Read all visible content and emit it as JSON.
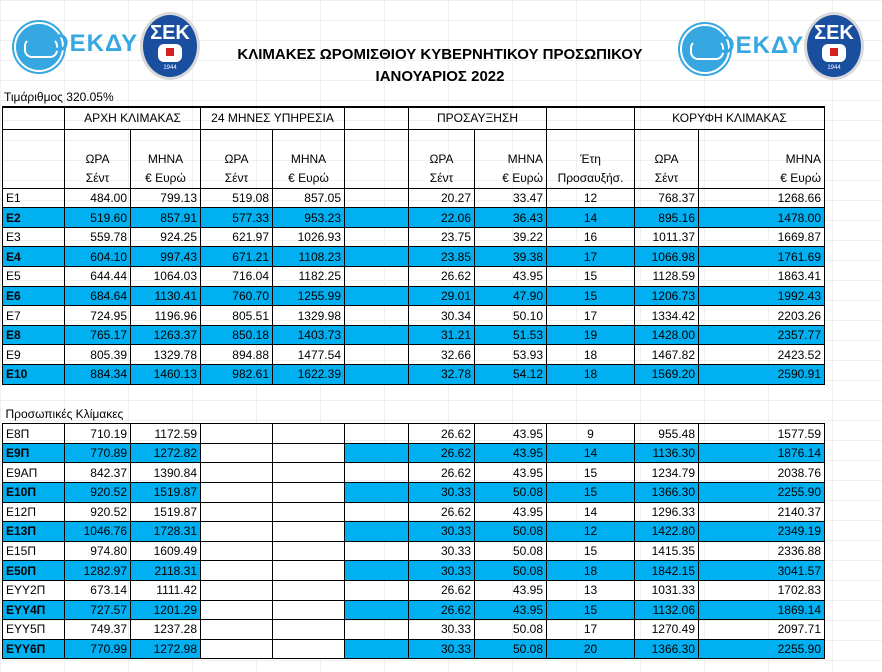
{
  "header": {
    "left_logo_text": "ΟΕΚΔΥ",
    "sek_logo_text": "ΣΕΚ",
    "sek_year": "1944",
    "right_logo_text": "ΟΕΚΔΥ",
    "title_line1": "ΚΛΙΜΑΚΕΣ ΩΡΟΜΙΣΘΙΟΥ ΚΥΒΕΡΝΗΤΙΚΟΥ ΠΡΟΣΩΠΙΚΟΥ",
    "title_line2": "ΙΑΝΟΥΑΡΙΟΣ 2022"
  },
  "rate_label": "Τιμάριθμος 320.05%",
  "colors": {
    "row_highlight": "#00b0f0",
    "logo_blue": "#36a7e0",
    "sek_blue": "#1a4fa0"
  },
  "groups": {
    "start": "ΑΡΧΗ ΚΛΙΜΑΚΑΣ",
    "months24": "24 ΜΗΝΕΣ ΥΠΗΡΕΣΙΑ",
    "increase": "ΠΡΟΣΑΥΞΗΣΗ",
    "top": "ΚΟΡΥΦΗ ΚΛΙΜΑΚΑΣ"
  },
  "subheaders": {
    "hour": "ΩΡΑ",
    "month": "ΜΗΝΑ",
    "years": "Έτη",
    "cents": "Σέντ",
    "euro": "€ Ευρώ",
    "increases": "Προσαυξήσ."
  },
  "section_label": "Προσωπικές Κλίμακες",
  "rows": [
    {
      "code": "Ε1",
      "sh": "484.00",
      "sm": "799.13",
      "mh": "519.08",
      "mm": "857.05",
      "ih": "20.27",
      "im": "33.47",
      "y": "12",
      "th": "768.37",
      "tm": "1268.66",
      "blue": false
    },
    {
      "code": "Ε2",
      "sh": "519.60",
      "sm": "857.91",
      "mh": "577.33",
      "mm": "953.23",
      "ih": "22.06",
      "im": "36.43",
      "y": "14",
      "th": "895.16",
      "tm": "1478.00",
      "blue": true
    },
    {
      "code": "Ε3",
      "sh": "559.78",
      "sm": "924.25",
      "mh": "621.97",
      "mm": "1026.93",
      "ih": "23.75",
      "im": "39.22",
      "y": "16",
      "th": "1011.37",
      "tm": "1669.87",
      "blue": false
    },
    {
      "code": "Ε4",
      "sh": "604.10",
      "sm": "997.43",
      "mh": "671.21",
      "mm": "1108.23",
      "ih": "23.85",
      "im": "39.38",
      "y": "17",
      "th": "1066.98",
      "tm": "1761.69",
      "blue": true
    },
    {
      "code": "Ε5",
      "sh": "644.44",
      "sm": "1064.03",
      "mh": "716.04",
      "mm": "1182.25",
      "ih": "26.62",
      "im": "43.95",
      "y": "15",
      "th": "1128.59",
      "tm": "1863.41",
      "blue": false
    },
    {
      "code": "Ε6",
      "sh": "684.64",
      "sm": "1130.41",
      "mh": "760.70",
      "mm": "1255.99",
      "ih": "29.01",
      "im": "47.90",
      "y": "15",
      "th": "1206.73",
      "tm": "1992.43",
      "blue": true
    },
    {
      "code": "Ε7",
      "sh": "724.95",
      "sm": "1196.96",
      "mh": "805.51",
      "mm": "1329.98",
      "ih": "30.34",
      "im": "50.10",
      "y": "17",
      "th": "1334.42",
      "tm": "2203.26",
      "blue": false
    },
    {
      "code": "Ε8",
      "sh": "765.17",
      "sm": "1263.37",
      "mh": "850.18",
      "mm": "1403.73",
      "ih": "31.21",
      "im": "51.53",
      "y": "19",
      "th": "1428.00",
      "tm": "2357.77",
      "blue": true
    },
    {
      "code": "Ε9",
      "sh": "805.39",
      "sm": "1329.78",
      "mh": "894.88",
      "mm": "1477.54",
      "ih": "32.66",
      "im": "53.93",
      "y": "18",
      "th": "1467.82",
      "tm": "2423.52",
      "blue": false
    },
    {
      "code": "Ε10",
      "sh": "884.34",
      "sm": "1460.13",
      "mh": "982.61",
      "mm": "1622.39",
      "ih": "32.78",
      "im": "54.12",
      "y": "18",
      "th": "1569.20",
      "tm": "2590.91",
      "blue": true
    }
  ],
  "personal_rows": [
    {
      "code": "Ε8Π",
      "sh": "710.19",
      "sm": "1172.59",
      "ih": "26.62",
      "im": "43.95",
      "y": "9",
      "th": "955.48",
      "tm": "1577.59",
      "blue": false
    },
    {
      "code": "Ε9Π",
      "sh": "770.89",
      "sm": "1272.82",
      "ih": "26.62",
      "im": "43.95",
      "y": "14",
      "th": "1136.30",
      "tm": "1876.14",
      "blue": true
    },
    {
      "code": "Ε9ΑΠ",
      "sh": "842.37",
      "sm": "1390.84",
      "ih": "26.62",
      "im": "43.95",
      "y": "15",
      "th": "1234.79",
      "tm": "2038.76",
      "blue": false
    },
    {
      "code": "Ε10Π",
      "sh": "920.52",
      "sm": "1519.87",
      "ih": "30.33",
      "im": "50.08",
      "y": "15",
      "th": "1366.30",
      "tm": "2255.90",
      "blue": true
    },
    {
      "code": "Ε12Π",
      "sh": "920.52",
      "sm": "1519.87",
      "ih": "26.62",
      "im": "43.95",
      "y": "14",
      "th": "1296.33",
      "tm": "2140.37",
      "blue": false
    },
    {
      "code": "Ε13Π",
      "sh": "1046.76",
      "sm": "1728.31",
      "ih": "30.33",
      "im": "50.08",
      "y": "12",
      "th": "1422.80",
      "tm": "2349.19",
      "blue": true
    },
    {
      "code": "Ε15Π",
      "sh": "974.80",
      "sm": "1609.49",
      "ih": "30.33",
      "im": "50.08",
      "y": "15",
      "th": "1415.35",
      "tm": "2336.88",
      "blue": false
    },
    {
      "code": "Ε50Π",
      "sh": "1282.97",
      "sm": "2118.31",
      "ih": "30.33",
      "im": "50.08",
      "y": "18",
      "th": "1842.15",
      "tm": "3041.57",
      "blue": true
    },
    {
      "code": "ΕΥΥ2Π",
      "sh": "673.14",
      "sm": "1111.42",
      "ih": "26.62",
      "im": "43.95",
      "y": "13",
      "th": "1031.33",
      "tm": "1702.83",
      "blue": false
    },
    {
      "code": "ΕΥΥ4Π",
      "sh": "727.57",
      "sm": "1201.29",
      "ih": "26.62",
      "im": "43.95",
      "y": "15",
      "th": "1132.06",
      "tm": "1869.14",
      "blue": true
    },
    {
      "code": "ΕΥΥ5Π",
      "sh": "749.37",
      "sm": "1237.28",
      "ih": "30.33",
      "im": "50.08",
      "y": "17",
      "th": "1270.49",
      "tm": "2097.71",
      "blue": false
    },
    {
      "code": "ΕΥΥ6Π",
      "sh": "770.99",
      "sm": "1272.98",
      "ih": "30.33",
      "im": "50.08",
      "y": "20",
      "th": "1366.30",
      "tm": "2255.90",
      "blue": true
    }
  ]
}
